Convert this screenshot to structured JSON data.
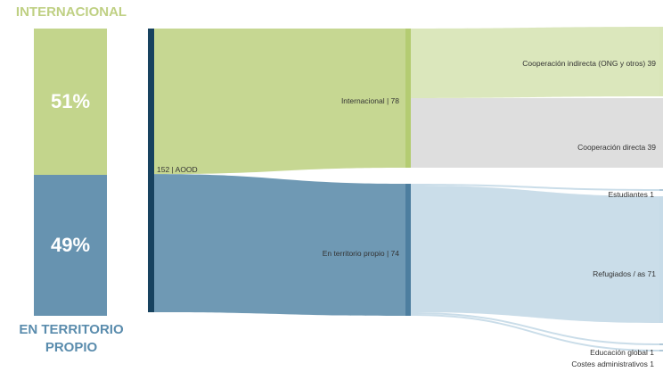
{
  "stacked": {
    "top_label": "INTERNACIONAL",
    "bottom_label_line1": "EN TERRITORIO",
    "bottom_label_line2": "PROPIO",
    "segments": [
      {
        "label": "51%",
        "value": 51,
        "color": "#c3d58c"
      },
      {
        "label": "49%",
        "value": 49,
        "color": "#6793b0"
      }
    ]
  },
  "chart_data": {
    "type": "sankey",
    "nodes": [
      {
        "id": "total",
        "label": "152 | AOOD",
        "value": 152,
        "color": "#17425f"
      },
      {
        "id": "int",
        "label": "Internacional | 78",
        "value": 78,
        "color": "#b4cc72"
      },
      {
        "id": "ter",
        "label": "En territorio propio | 74",
        "value": 74,
        "color": "#4d7e9f"
      },
      {
        "id": "coopind",
        "label": "Cooperación indirecta (ONG y otros) 39",
        "value": 39,
        "color": "#d9e6b8"
      },
      {
        "id": "coopdir",
        "label": "Cooperación directa 39",
        "value": 39,
        "color": "#dedede"
      },
      {
        "id": "est",
        "label": "Estudiantes 1",
        "value": 1,
        "color": "#b0c8d8"
      },
      {
        "id": "ref",
        "label": "Refugiados / as 71",
        "value": 71,
        "color": "#c7dbe8"
      },
      {
        "id": "edu",
        "label": "Educación global 1",
        "value": 1,
        "color": "#b0c8d8"
      },
      {
        "id": "cost",
        "label": "Costes administrativos 1",
        "value": 1,
        "color": "#b0c8d8"
      }
    ],
    "links": [
      {
        "source": "total",
        "target": "int",
        "value": 78,
        "color": "#c3d58c"
      },
      {
        "source": "total",
        "target": "ter",
        "value": 74,
        "color": "#6793b0"
      },
      {
        "source": "int",
        "target": "coopind",
        "value": 39,
        "color": "#d9e6b8"
      },
      {
        "source": "int",
        "target": "coopdir",
        "value": 39,
        "color": "#dcdcdc"
      },
      {
        "source": "ter",
        "target": "est",
        "value": 1,
        "color": "#c7dbe8"
      },
      {
        "source": "ter",
        "target": "ref",
        "value": 71,
        "color": "#c7dbe8"
      },
      {
        "source": "ter",
        "target": "edu",
        "value": 1,
        "color": "#c7dbe8"
      },
      {
        "source": "ter",
        "target": "cost",
        "value": 1,
        "color": "#c7dbe8"
      }
    ]
  }
}
